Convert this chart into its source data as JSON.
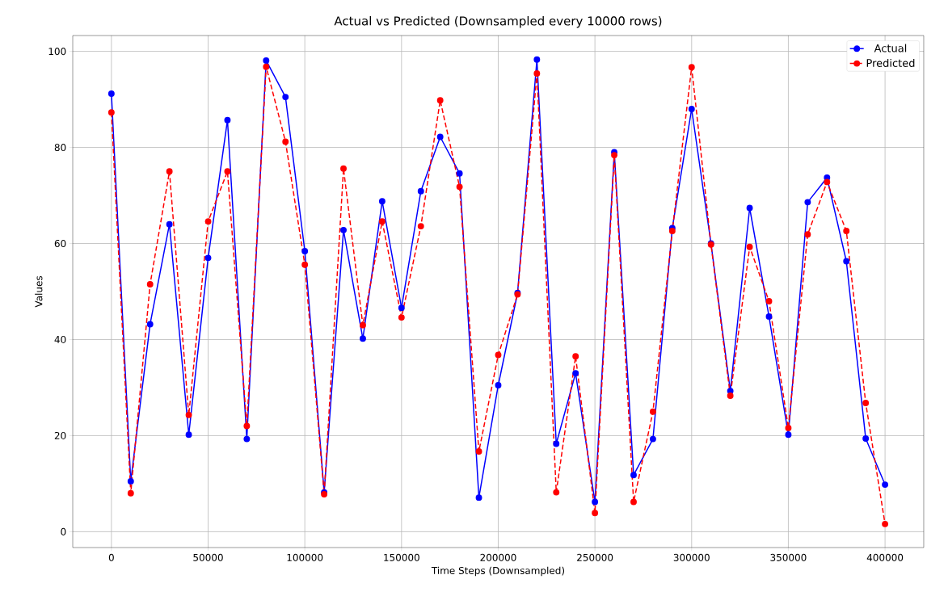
{
  "chart_data": {
    "type": "line",
    "title": "Actual vs Predicted (Downsampled every 10000 rows)",
    "xlabel": "Time Steps (Downsampled)",
    "ylabel": "Values",
    "x": [
      0,
      10000,
      20000,
      30000,
      40000,
      50000,
      60000,
      70000,
      80000,
      90000,
      100000,
      110000,
      120000,
      130000,
      140000,
      150000,
      160000,
      170000,
      180000,
      190000,
      200000,
      210000,
      220000,
      230000,
      240000,
      250000,
      260000,
      270000,
      280000,
      290000,
      300000,
      310000,
      320000,
      330000,
      340000,
      350000,
      360000,
      370000,
      380000,
      390000,
      400000
    ],
    "series": [
      {
        "name": "Actual",
        "color": "#0000ff",
        "line_style": "solid",
        "values": [
          91.2,
          10.5,
          43.2,
          64,
          20.2,
          57,
          85.7,
          19.3,
          98.1,
          90.5,
          58.4,
          8.2,
          62.8,
          40.2,
          68.8,
          46.6,
          70.9,
          82.2,
          74.6,
          7.1,
          30.5,
          49.7,
          98.3,
          18.3,
          33,
          6.2,
          79,
          11.8,
          19.3,
          63.2,
          88,
          60,
          29.3,
          67.4,
          44.8,
          20.2,
          68.6,
          73.7,
          56.3,
          19.4,
          9.8
        ]
      },
      {
        "name": "Predicted",
        "color": "#ff0000",
        "line_style": "dashed",
        "values": [
          87.3,
          8,
          51.5,
          75,
          24.3,
          64.6,
          75,
          22,
          96.8,
          81.2,
          55.6,
          7.8,
          75.6,
          43,
          64.6,
          44.6,
          63.6,
          89.8,
          71.8,
          16.7,
          36.8,
          49.4,
          95.4,
          8.2,
          36.5,
          3.9,
          78.4,
          6.2,
          25,
          62.6,
          96.7,
          59.8,
          28.3,
          59.3,
          48,
          21.6,
          61.9,
          72.8,
          62.6,
          26.8,
          1.6
        ]
      }
    ],
    "xlim": [
      -20000,
      420000
    ],
    "ylim": [
      -3.3,
      103.3
    ],
    "xticks": [
      0,
      50000,
      100000,
      150000,
      200000,
      250000,
      300000,
      350000,
      400000
    ],
    "yticks": [
      0,
      20,
      40,
      60,
      80,
      100
    ],
    "grid": true,
    "legend": "top right",
    "marker": "circle"
  }
}
